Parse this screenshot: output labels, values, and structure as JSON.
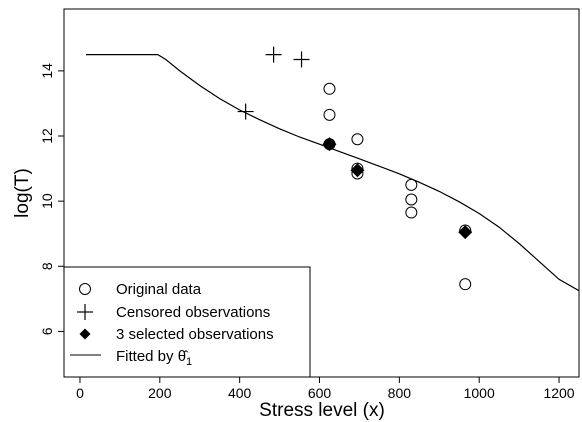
{
  "chart_data": {
    "type": "scatter",
    "xlabel": "Stress level (x)",
    "ylabel": "log(T)",
    "xlim": [
      -40,
      1250
    ],
    "ylim": [
      4.6,
      15.9
    ],
    "x_ticks": [
      0,
      200,
      400,
      600,
      800,
      1000,
      1200
    ],
    "y_ticks": [
      6,
      8,
      10,
      12,
      14
    ],
    "x_tick_labels": [
      "0",
      "200",
      "400",
      "600",
      "800",
      "1000",
      "1200"
    ],
    "y_tick_labels": [
      "6",
      "8",
      "10",
      "12",
      "14"
    ],
    "grid": false,
    "legend_position": "bottom-left",
    "series": [
      {
        "name": "Original data",
        "marker": "open-circle",
        "points": [
          {
            "x": 625,
            "y": 13.45
          },
          {
            "x": 625,
            "y": 12.65
          },
          {
            "x": 695,
            "y": 11.9
          },
          {
            "x": 625,
            "y": 11.75
          },
          {
            "x": 695,
            "y": 11.0
          },
          {
            "x": 695,
            "y": 10.85
          },
          {
            "x": 830,
            "y": 10.5
          },
          {
            "x": 830,
            "y": 10.05
          },
          {
            "x": 830,
            "y": 9.65
          },
          {
            "x": 965,
            "y": 9.1
          },
          {
            "x": 965,
            "y": 7.45
          }
        ]
      },
      {
        "name": "Censored observations",
        "marker": "plus",
        "points": [
          {
            "x": 415,
            "y": 12.75
          },
          {
            "x": 485,
            "y": 14.5
          },
          {
            "x": 555,
            "y": 14.35
          }
        ]
      },
      {
        "name": "3 selected observations",
        "marker": "filled-diamond",
        "points": [
          {
            "x": 625,
            "y": 11.75
          },
          {
            "x": 695,
            "y": 10.95
          },
          {
            "x": 965,
            "y": 9.05
          }
        ]
      },
      {
        "name": "Fitted by ",
        "name_symbol": "θ̂",
        "name_subscript": "1",
        "marker": "line",
        "points": [
          {
            "x": 15,
            "y": 14.5
          },
          {
            "x": 195,
            "y": 14.5
          },
          {
            "x": 215,
            "y": 14.35
          },
          {
            "x": 250,
            "y": 14.0
          },
          {
            "x": 300,
            "y": 13.55
          },
          {
            "x": 350,
            "y": 13.15
          },
          {
            "x": 400,
            "y": 12.8
          },
          {
            "x": 450,
            "y": 12.5
          },
          {
            "x": 500,
            "y": 12.22
          },
          {
            "x": 550,
            "y": 11.97
          },
          {
            "x": 600,
            "y": 11.75
          },
          {
            "x": 650,
            "y": 11.52
          },
          {
            "x": 700,
            "y": 11.3
          },
          {
            "x": 750,
            "y": 11.07
          },
          {
            "x": 800,
            "y": 10.84
          },
          {
            "x": 850,
            "y": 10.58
          },
          {
            "x": 900,
            "y": 10.3
          },
          {
            "x": 950,
            "y": 9.98
          },
          {
            "x": 1000,
            "y": 9.62
          },
          {
            "x": 1050,
            "y": 9.2
          },
          {
            "x": 1100,
            "y": 8.7
          },
          {
            "x": 1150,
            "y": 8.15
          },
          {
            "x": 1200,
            "y": 7.6
          },
          {
            "x": 1250,
            "y": 7.25
          }
        ]
      }
    ]
  }
}
